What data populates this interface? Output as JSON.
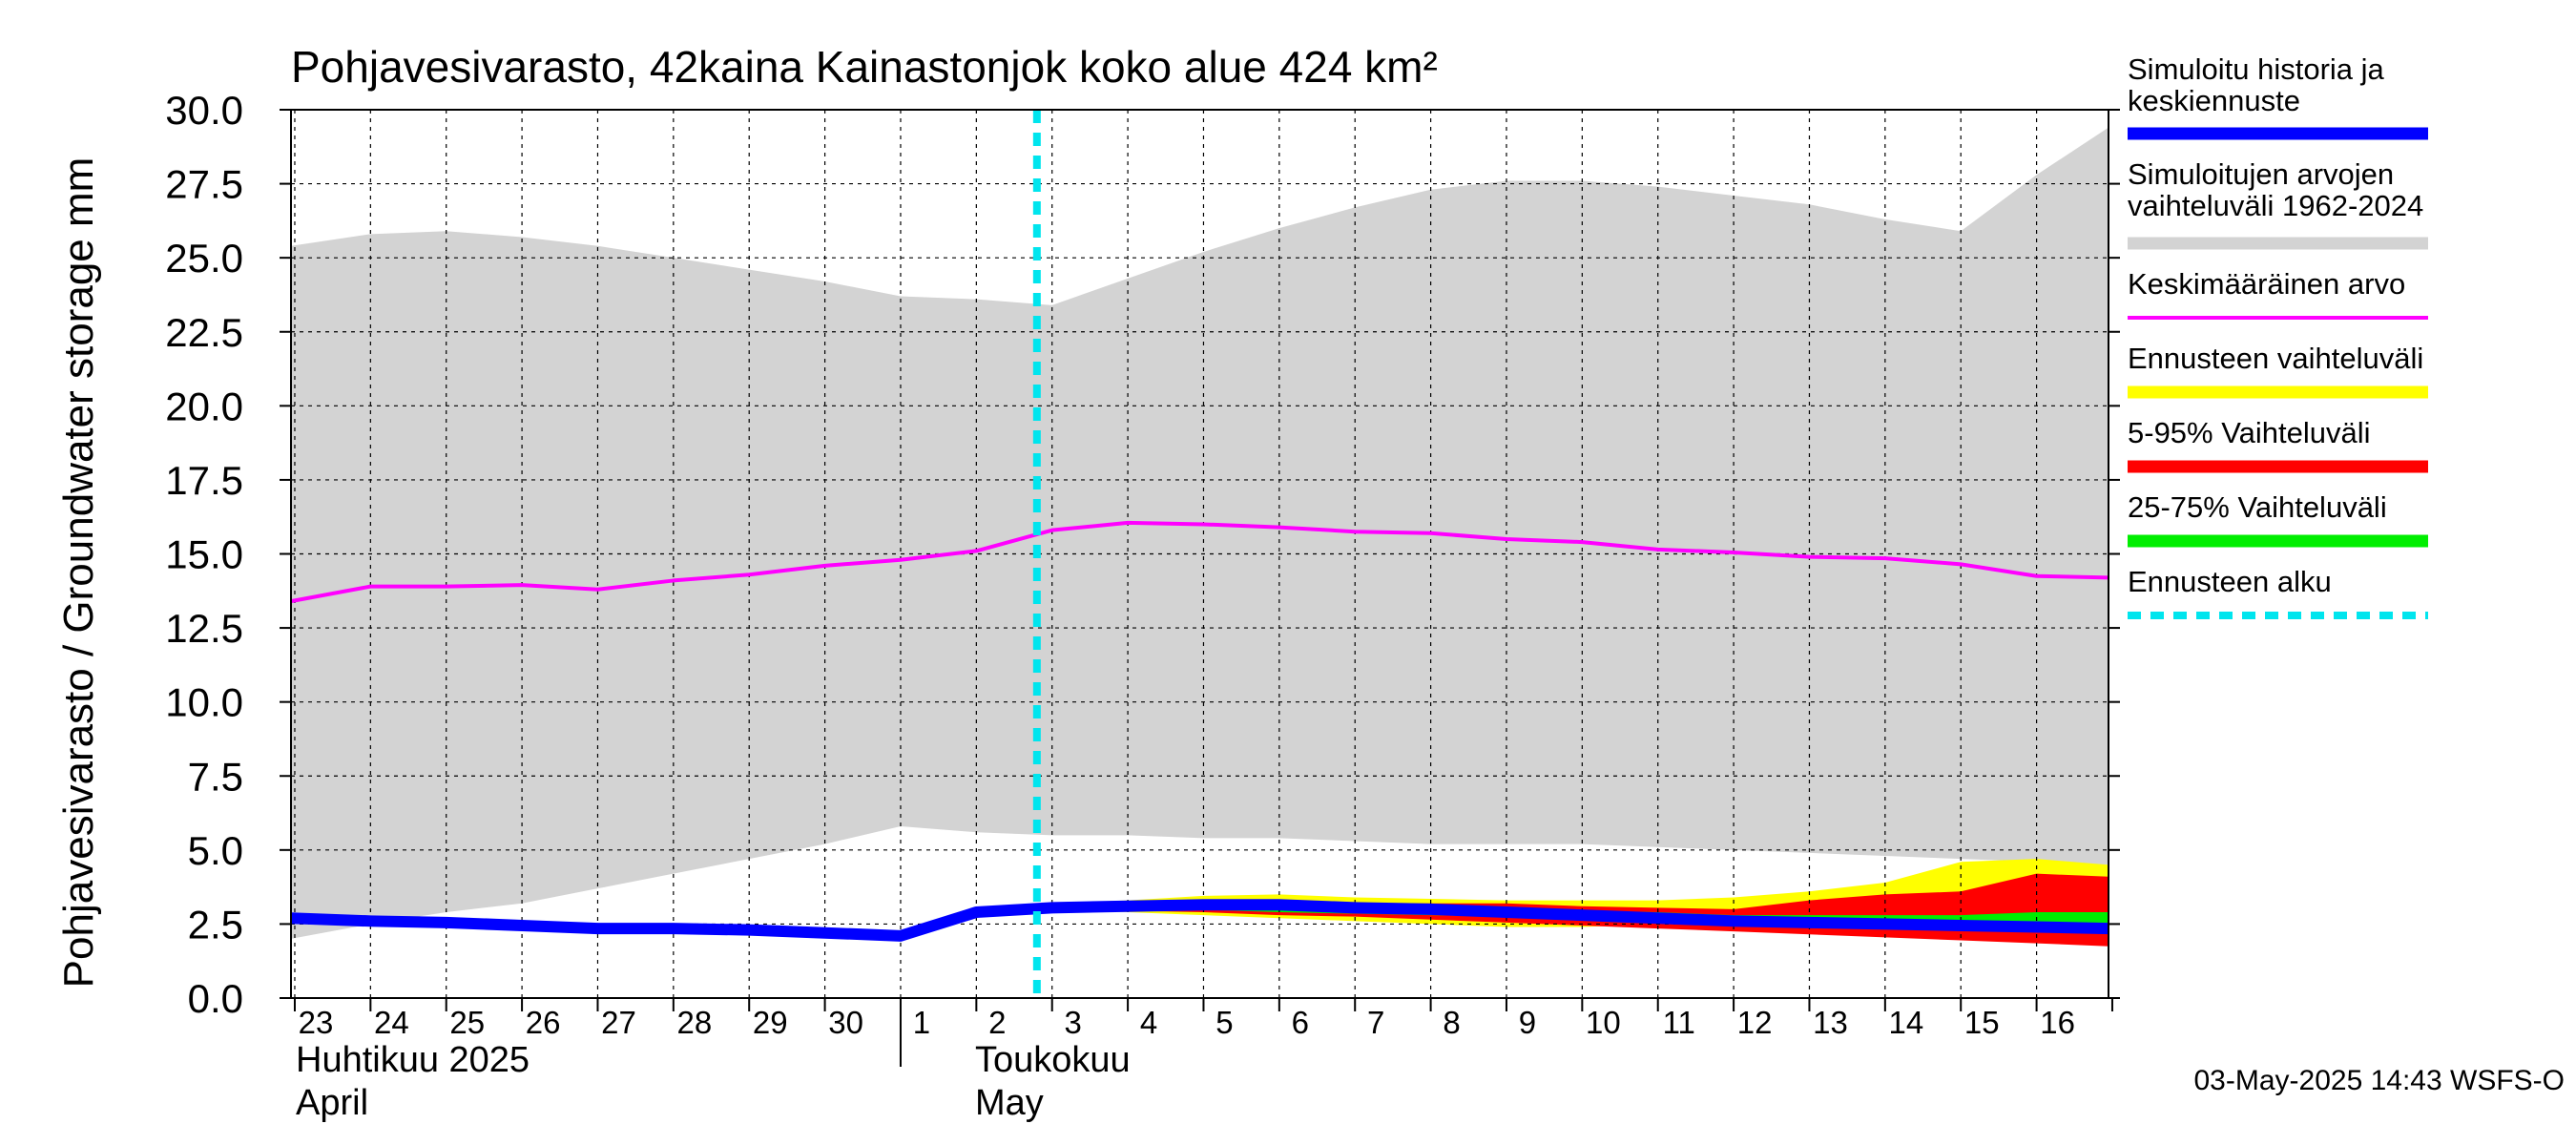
{
  "chart_data": {
    "type": "area",
    "title": "Pohjavesivarasto, 42kaina Kainastonjok koko alue 424 km²",
    "ylabel": "Pohjavesivarasto / Groundwater storage   mm",
    "ylim": [
      0,
      30
    ],
    "y_ticks": [
      "0.0",
      "2.5",
      "5.0",
      "7.5",
      "10.0",
      "12.5",
      "15.0",
      "17.5",
      "20.0",
      "22.5",
      "25.0",
      "27.5",
      "30.0"
    ],
    "x_tick_labels": [
      "23",
      "24",
      "25",
      "26",
      "27",
      "28",
      "29",
      "30",
      "1",
      "2",
      "3",
      "4",
      "5",
      "6",
      "7",
      "8",
      "9",
      "10",
      "11",
      "12",
      "13",
      "14",
      "15",
      "16"
    ],
    "x_range_days": [
      -0.05,
      23.95
    ],
    "month_labels": {
      "april_fi": "Huhtikuu  2025",
      "april_en": "April",
      "may_fi": "Toukokuu",
      "may_en": "May"
    },
    "forecast_start_day": 9.8,
    "grid": true,
    "legend_position": "right",
    "series": [
      {
        "name": "Simuloitujen arvojen vaihteluväli 1962-2024",
        "kind": "band",
        "color": "#d3d3d3",
        "x": [
          -0.05,
          1,
          2,
          3,
          4,
          5,
          6,
          7,
          8,
          9,
          10,
          11,
          12,
          13,
          14,
          15,
          16,
          17,
          18,
          19,
          20,
          21,
          22,
          23,
          23.95
        ],
        "upper": [
          25.4,
          25.8,
          25.9,
          25.7,
          25.4,
          25.0,
          24.6,
          24.2,
          23.7,
          23.6,
          23.4,
          24.3,
          25.2,
          26.0,
          26.7,
          27.3,
          27.6,
          27.6,
          27.4,
          27.1,
          26.8,
          26.3,
          25.9,
          27.8,
          29.4
        ],
        "lower": [
          2.0,
          2.5,
          2.9,
          3.2,
          3.7,
          4.2,
          4.7,
          5.2,
          5.8,
          5.6,
          5.5,
          5.5,
          5.4,
          5.4,
          5.3,
          5.2,
          5.2,
          5.2,
          5.1,
          5.0,
          4.9,
          4.8,
          4.7,
          4.6,
          4.5
        ]
      },
      {
        "name": "Ennusteen vaihteluväli",
        "kind": "band",
        "color": "#ffff00",
        "x": [
          9.8,
          10,
          11,
          12,
          13,
          14,
          15,
          16,
          17,
          18,
          19,
          20,
          21,
          22,
          23,
          23.95
        ],
        "upper": [
          3.1,
          3.2,
          3.3,
          3.45,
          3.5,
          3.4,
          3.35,
          3.3,
          3.3,
          3.3,
          3.4,
          3.6,
          3.9,
          4.6,
          4.7,
          4.5
        ],
        "lower": [
          3.0,
          3.0,
          2.9,
          2.8,
          2.7,
          2.6,
          2.5,
          2.4,
          2.4,
          2.5,
          2.4,
          2.3,
          2.2,
          2.1,
          2.0,
          1.9
        ]
      },
      {
        "name": "5-95% Vaihteluväli",
        "kind": "band",
        "color": "#ff0000",
        "x": [
          9.8,
          10,
          11,
          12,
          13,
          14,
          15,
          16,
          17,
          18,
          19,
          20,
          21,
          22,
          23,
          23.95
        ],
        "upper": [
          3.05,
          3.1,
          3.15,
          3.25,
          3.25,
          3.2,
          3.2,
          3.2,
          3.1,
          3.05,
          3.0,
          3.3,
          3.5,
          3.6,
          4.2,
          4.1
        ],
        "lower": [
          3.0,
          3.0,
          2.95,
          2.9,
          2.8,
          2.75,
          2.65,
          2.55,
          2.45,
          2.35,
          2.25,
          2.15,
          2.05,
          1.95,
          1.85,
          1.75
        ]
      },
      {
        "name": "25-75% Vaihteluväli",
        "kind": "band",
        "color": "#00ee00",
        "x": [
          9.8,
          10,
          11,
          12,
          13,
          14,
          15,
          16,
          17,
          18,
          19,
          20,
          21,
          22,
          23,
          23.95
        ],
        "upper": [
          3.05,
          3.08,
          3.12,
          3.2,
          3.15,
          3.1,
          3.05,
          3.0,
          2.95,
          2.9,
          2.8,
          2.8,
          2.8,
          2.8,
          2.9,
          2.9
        ],
        "lower": [
          3.0,
          3.02,
          3.0,
          2.98,
          2.9,
          2.85,
          2.8,
          2.75,
          2.7,
          2.65,
          2.6,
          2.5,
          2.45,
          2.4,
          2.3,
          2.25
        ]
      },
      {
        "name": "Keskimääräinen arvo",
        "kind": "line",
        "color": "#ff00ff",
        "width": 4,
        "x": [
          -0.05,
          1,
          2,
          3,
          4,
          5,
          6,
          7,
          8,
          9,
          10,
          11,
          12,
          13,
          14,
          15,
          16,
          17,
          18,
          19,
          20,
          21,
          22,
          23,
          23.95
        ],
        "y": [
          13.4,
          13.9,
          13.9,
          13.95,
          13.8,
          14.1,
          14.3,
          14.6,
          14.8,
          15.1,
          15.8,
          16.05,
          16.0,
          15.9,
          15.75,
          15.7,
          15.5,
          15.4,
          15.15,
          15.05,
          14.9,
          14.85,
          14.65,
          14.25,
          14.2
        ]
      },
      {
        "name": "Simuloitu historia ja keskiennuste",
        "kind": "line",
        "color": "#0000ff",
        "width": 12,
        "x": [
          -0.05,
          1,
          2,
          3,
          4,
          5,
          6,
          7,
          8,
          9,
          10,
          11,
          12,
          13,
          14,
          15,
          16,
          17,
          18,
          19,
          20,
          21,
          22,
          23,
          23.95
        ],
        "y": [
          2.7,
          2.6,
          2.55,
          2.45,
          2.35,
          2.35,
          2.3,
          2.2,
          2.1,
          2.9,
          3.05,
          3.1,
          3.15,
          3.15,
          3.05,
          3.0,
          2.9,
          2.8,
          2.7,
          2.6,
          2.55,
          2.5,
          2.45,
          2.4,
          2.35
        ]
      }
    ]
  },
  "legend": [
    {
      "label": "Simuloitu historia ja\nkeskiennuste",
      "color": "#0000ff",
      "style": "thick"
    },
    {
      "label": "Simuloitujen arvojen\nvaihteluväli 1962-2024",
      "color": "#d3d3d3",
      "style": "thick"
    },
    {
      "label": "Keskimääräinen arvo",
      "color": "#ff00ff",
      "style": "thin"
    },
    {
      "label": "Ennusteen vaihteluväli",
      "color": "#ffff00",
      "style": "thick"
    },
    {
      "label": "5-95% Vaihteluväli",
      "color": "#ff0000",
      "style": "thick"
    },
    {
      "label": "25-75% Vaihteluväli",
      "color": "#00ee00",
      "style": "thick"
    },
    {
      "label": "Ennusteen alku",
      "color": "#00e5ee",
      "style": "dashed"
    }
  ],
  "footer": "03-May-2025 14:43 WSFS-O"
}
